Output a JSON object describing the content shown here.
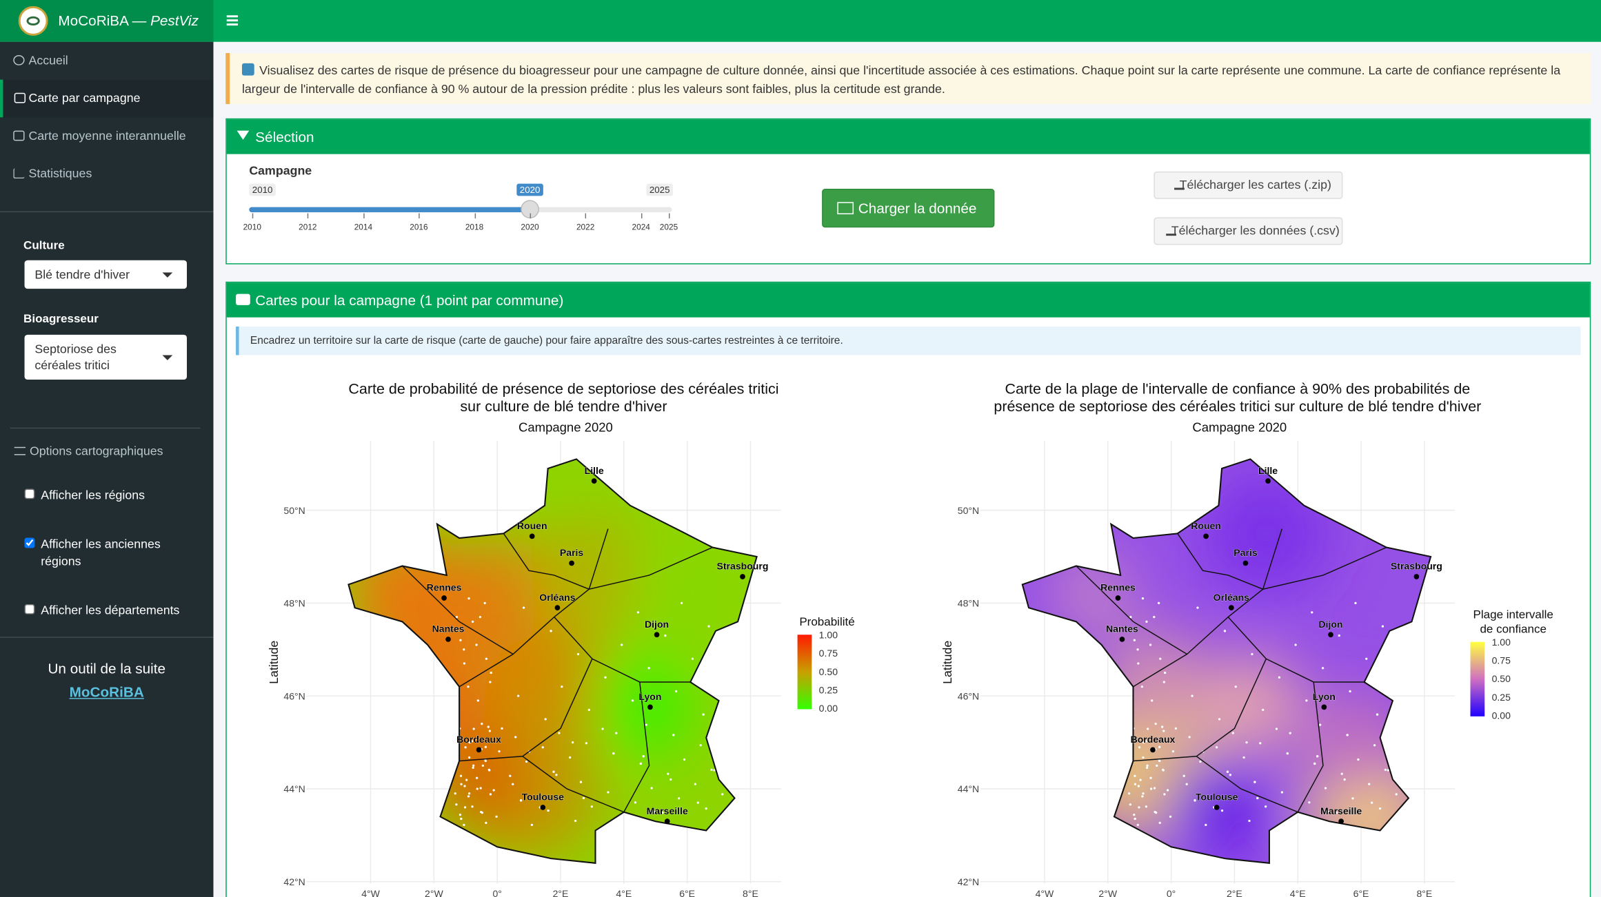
{
  "header": {
    "brand": "MoCoRiBA —",
    "brand_italic": "PestViz"
  },
  "sidebar": {
    "nav": [
      "Accueil",
      "Carte par campagne",
      "Carte moyenne interannuelle",
      "Statistiques"
    ],
    "culture_label": "Culture",
    "culture_value": "Blé tendre d'hiver",
    "bio_label": "Bioagresseur",
    "bio_value": "Septoriose des céréales tritici",
    "options_title": "Options cartographiques",
    "checkboxes": [
      {
        "label": "Afficher les régions",
        "checked": false
      },
      {
        "label": "Afficher les anciennes régions",
        "checked": true
      },
      {
        "label": "Afficher les départements",
        "checked": false
      }
    ],
    "footer_text": "Un outil de la suite",
    "footer_link": "MoCoRiBA"
  },
  "info_banner": "Visualisez des cartes de risque de présence du bioagresseur pour une campagne de culture donnée, ainsi que l'incertitude associée à ces estimations. Chaque point sur la carte représente une commune. La carte de confiance représente la largeur de l'intervalle de confiance à 90 % autour de la pression prédite : plus les valeurs sont faibles, plus la certitude est grande.",
  "selection": {
    "title": "Sélection",
    "slider_label": "Campagne",
    "min": 2010,
    "max": 2025,
    "value": 2020,
    "ticks": [
      2010,
      2012,
      2014,
      2016,
      2018,
      2020,
      2022,
      2024,
      2025
    ],
    "load_button": "Charger la donnée",
    "download_maps": "Télécharger les cartes (.zip)",
    "download_data": "Télécharger les données (.csv)"
  },
  "maps_panel": {
    "title": "Cartes pour la campagne (1 point par commune)",
    "hint": "Encadrez un territoire sur la carte de risque (carte de gauche) pour faire apparaître des sous-cartes restreintes à ce territoire.",
    "maps": [
      {
        "title_lines": [
          "Carte de probabilité de présence de septoriose des céréales tritici",
          "sur culture de blé tendre d'hiver"
        ],
        "subtitle": "Campagne 2020",
        "y_label": "Latitude",
        "legend_title": [
          "Probabilité"
        ],
        "legend_labels": [
          "1.00",
          "0.75",
          "0.50",
          "0.25",
          "0.00"
        ]
      },
      {
        "title_lines": [
          "Carte de la plage de l'intervalle de confiance à 90% des probabilités de",
          "présence de septoriose des céréales tritici sur culture de blé tendre d'hiver"
        ],
        "subtitle": "Campagne 2020",
        "y_label": "Latitude",
        "legend_title": [
          "Plage intervalle",
          "de confiance"
        ],
        "legend_labels": [
          "1.00",
          "0.75",
          "0.50",
          "0.25",
          "0.00"
        ]
      }
    ],
    "lat_ticks": [
      "50°N",
      "48°N",
      "46°N",
      "44°N",
      "42°N"
    ],
    "lon_ticks": [
      "4°W",
      "2°W",
      "0°",
      "2°E",
      "4°E",
      "6°E",
      "8°E"
    ],
    "cities": [
      "Lille",
      "Rouen",
      "Paris",
      "Strasbourg",
      "Rennes",
      "Orléans",
      "Nantes",
      "Dijon",
      "Lyon",
      "Bordeaux",
      "Toulouse",
      "Marseille"
    ]
  }
}
